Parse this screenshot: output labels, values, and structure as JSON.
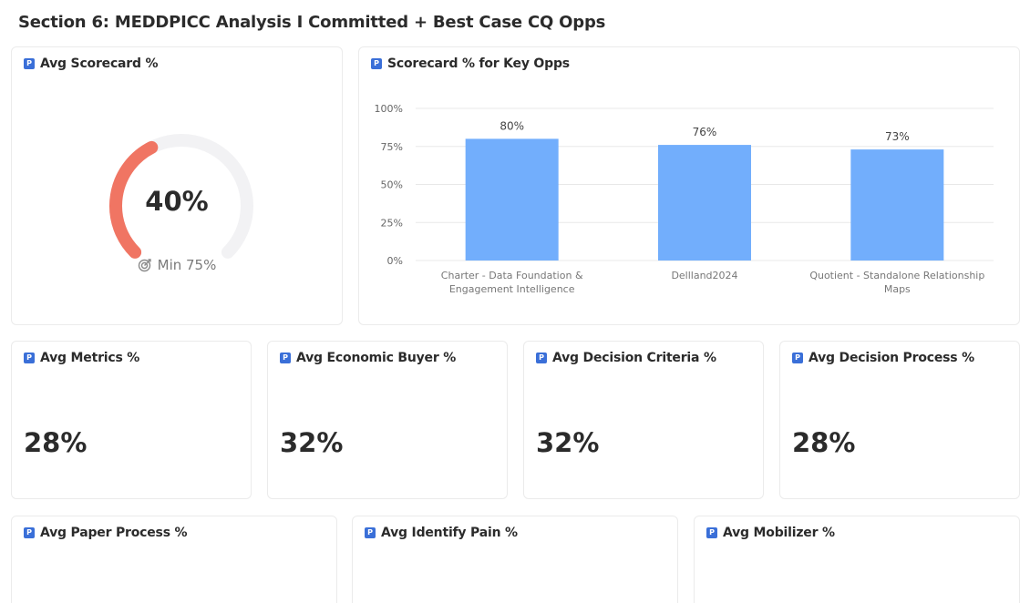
{
  "section": {
    "title": "Section 6: MEDDPICC Analysis I Committed + Best Case CQ Opps"
  },
  "icon": {
    "name": "p-logo-icon",
    "glyph": "P",
    "color": "#3a6fd8"
  },
  "avg_scorecard": {
    "title": "Avg Scorecard %",
    "value": "40%",
    "value_fraction": 0.4,
    "min_label": "Min 75%",
    "colors": {
      "fill": "#f07563",
      "track": "#f2f2f4"
    }
  },
  "key_opps": {
    "title": "Scorecard % for Key Opps"
  },
  "chart_data": {
    "type": "bar",
    "categories": [
      [
        "Charter - Data Foundation &",
        "Engagement Intelligence"
      ],
      [
        "Dellland2024"
      ],
      [
        "Quotient - Standalone Relationship",
        "Maps"
      ]
    ],
    "values": [
      80,
      76,
      73
    ],
    "data_labels": [
      "80%",
      "76%",
      "73%"
    ],
    "y_ticks": [
      "100%",
      "75%",
      "50%",
      "25%",
      "0%"
    ],
    "y_tick_values": [
      100,
      75,
      50,
      25,
      0
    ],
    "ylim": [
      0,
      100
    ],
    "bar_color": "#72aefc",
    "grid": true,
    "title": "",
    "xlabel": "",
    "ylabel": ""
  },
  "metrics_cards": [
    {
      "title": "Avg Metrics %",
      "value": "28%"
    },
    {
      "title": "Avg Economic Buyer %",
      "value": "32%"
    },
    {
      "title": "Avg Decision Criteria %",
      "value": "32%"
    },
    {
      "title": "Avg Decision Process %",
      "value": "28%"
    }
  ],
  "bottom_cards": [
    {
      "title": "Avg Paper Process %"
    },
    {
      "title": "Avg Identify Pain %"
    },
    {
      "title": "Avg Mobilizer %"
    }
  ]
}
